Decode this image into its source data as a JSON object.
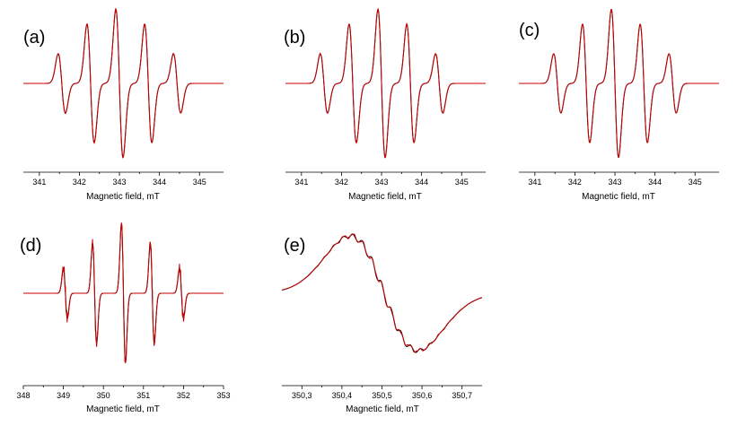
{
  "colors": {
    "experimental": "#cc0000",
    "simulated": "#111111"
  },
  "chart_data": [
    {
      "panel": "(a)",
      "type": "line",
      "xlabel": "Magnetic field, mT",
      "xlim": [
        340.6,
        345.6
      ],
      "xticks": [
        "341",
        "342",
        "343",
        "344",
        "345"
      ],
      "lines": [
        {
          "center": 341.56,
          "amp": 0.5,
          "width": 0.09
        },
        {
          "center": 342.28,
          "amp": 1.0,
          "width": 0.09
        },
        {
          "center": 343.0,
          "amp": 1.25,
          "width": 0.09
        },
        {
          "center": 343.72,
          "amp": 1.0,
          "width": 0.09
        },
        {
          "center": 344.44,
          "amp": 0.5,
          "width": 0.09
        }
      ],
      "noise": 0.02
    },
    {
      "panel": "(b)",
      "type": "line",
      "xlabel": "Magnetic field, mT",
      "xlim": [
        340.6,
        345.6
      ],
      "xticks": [
        "341",
        "342",
        "343",
        "344",
        "345"
      ],
      "lines": [
        {
          "center": 341.56,
          "amp": 0.5,
          "width": 0.09
        },
        {
          "center": 342.28,
          "amp": 1.0,
          "width": 0.09
        },
        {
          "center": 343.0,
          "amp": 1.25,
          "width": 0.09
        },
        {
          "center": 343.72,
          "amp": 1.0,
          "width": 0.09
        },
        {
          "center": 344.44,
          "amp": 0.5,
          "width": 0.09
        }
      ],
      "noise": 0.02
    },
    {
      "panel": "(c)",
      "type": "line",
      "xlabel": "Magnetic field, mT",
      "xlim": [
        340.6,
        345.6
      ],
      "xticks": [
        "341",
        "342",
        "343",
        "344",
        "345"
      ],
      "lines": [
        {
          "center": 341.56,
          "amp": 0.5,
          "width": 0.09
        },
        {
          "center": 342.28,
          "amp": 1.0,
          "width": 0.09
        },
        {
          "center": 343.0,
          "amp": 1.25,
          "width": 0.09
        },
        {
          "center": 343.72,
          "amp": 1.0,
          "width": 0.09
        },
        {
          "center": 344.44,
          "amp": 0.5,
          "width": 0.09
        }
      ],
      "noise": 0.0
    },
    {
      "panel": "(d)",
      "type": "line",
      "xlabel": "Magnetic field, mT",
      "xlim": [
        348.0,
        353.0
      ],
      "xticks": [
        "348",
        "349",
        "350",
        "351",
        "352",
        "353"
      ],
      "lines": [
        {
          "center": 349.05,
          "amp": 0.45,
          "width": 0.05
        },
        {
          "center": 349.78,
          "amp": 0.9,
          "width": 0.05
        },
        {
          "center": 350.5,
          "amp": 1.25,
          "width": 0.05
        },
        {
          "center": 351.22,
          "amp": 0.9,
          "width": 0.05
        },
        {
          "center": 351.95,
          "amp": 0.45,
          "width": 0.05
        }
      ],
      "noise": 0.15
    },
    {
      "panel": "(e)",
      "type": "line",
      "xlabel": "Magnetic field, mT",
      "xlim": [
        350.25,
        350.75
      ],
      "xticks": [
        "350,3",
        "350,4",
        "350,5",
        "350,6",
        "350,7"
      ],
      "lines": [
        {
          "center": 350.505,
          "amp": 1.0,
          "width": 0.085
        }
      ],
      "noise": 0.06
    }
  ]
}
